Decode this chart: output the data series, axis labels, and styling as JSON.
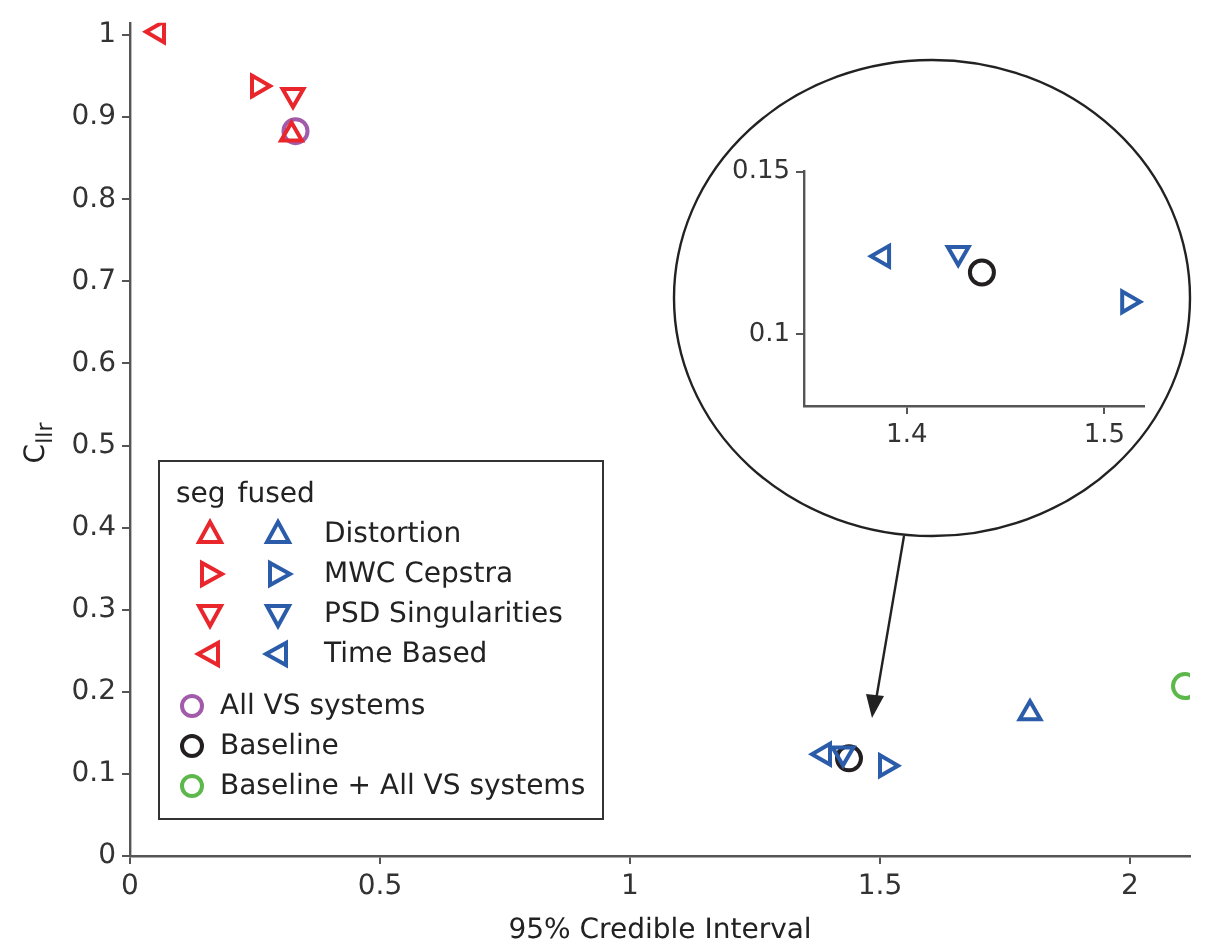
{
  "chart_data": [
    {
      "type": "scatter",
      "xlabel": "95% Credible Interval",
      "ylabel": "C$_{llr}$",
      "xlim": [
        0,
        2.12
      ],
      "ylim": [
        0,
        1.015
      ],
      "xticks": [
        0,
        0.5,
        1,
        1.5,
        2
      ],
      "yticks": [
        0,
        0.1,
        0.2,
        0.3,
        0.4,
        0.5,
        0.6,
        0.7,
        0.8,
        0.9,
        1
      ],
      "legend": "bottom left",
      "legend_title": "seg fused",
      "series": [
        {
          "color": "#e8262b",
          "marker": "triangle-up",
          "x": [
            0.323
          ],
          "values": [
            0.879
          ]
        },
        {
          "color": "#e8262b",
          "marker": "triangle-right",
          "x": [
            0.256
          ],
          "values": [
            0.938
          ]
        },
        {
          "color": "#e8262b",
          "marker": "triangle-down",
          "x": [
            0.326
          ],
          "values": [
            0.927
          ]
        },
        {
          "color": "#e8262b",
          "marker": "triangle-left",
          "x": [
            0.056
          ],
          "values": [
            1.004
          ]
        },
        {
          "name": "Distortion",
          "color": "#2a5caa",
          "marker": "triangle-up",
          "x": [
            1.8
          ],
          "values": [
            0.174
          ]
        },
        {
          "name": "MWC Cepstra",
          "color": "#2a5caa",
          "marker": "triangle-right",
          "x": [
            1.512
          ],
          "values": [
            0.11
          ]
        },
        {
          "name": "PSD Singularities",
          "color": "#2a5caa",
          "marker": "triangle-down",
          "x": [
            1.426
          ],
          "values": [
            0.125
          ]
        },
        {
          "name": "Time Based",
          "color": "#2a5caa",
          "marker": "triangle-left",
          "x": [
            1.388
          ],
          "values": [
            0.124
          ]
        },
        {
          "name": "All VS systems",
          "color": "#a25bab",
          "marker": "circle",
          "x": [
            0.331
          ],
          "values": [
            0.883
          ]
        },
        {
          "name": "Baseline",
          "color": "#231f20",
          "marker": "circle",
          "x": [
            1.438
          ],
          "values": [
            0.119
          ]
        },
        {
          "name": "Baseline + All VS systems",
          "color": "#5cb84a",
          "marker": "circle",
          "x": [
            2.11
          ],
          "values": [
            0.207
          ]
        }
      ]
    },
    {
      "type": "scatter",
      "xlim": [
        1.348,
        1.52
      ],
      "ylim": [
        0.078,
        0.15
      ],
      "xticks": [
        1.4,
        1.5
      ],
      "yticks": [
        0.1,
        0.15
      ],
      "series": [
        {
          "color": "#2a5caa",
          "marker": "triangle-right",
          "x": [
            1.512
          ],
          "values": [
            0.11
          ]
        },
        {
          "color": "#2a5caa",
          "marker": "triangle-down",
          "x": [
            1.426
          ],
          "values": [
            0.125
          ]
        },
        {
          "color": "#2a5caa",
          "marker": "triangle-left",
          "x": [
            1.388
          ],
          "values": [
            0.124
          ]
        },
        {
          "color": "#231f20",
          "marker": "circle",
          "x": [
            1.438
          ],
          "values": [
            0.119
          ]
        }
      ]
    }
  ]
}
